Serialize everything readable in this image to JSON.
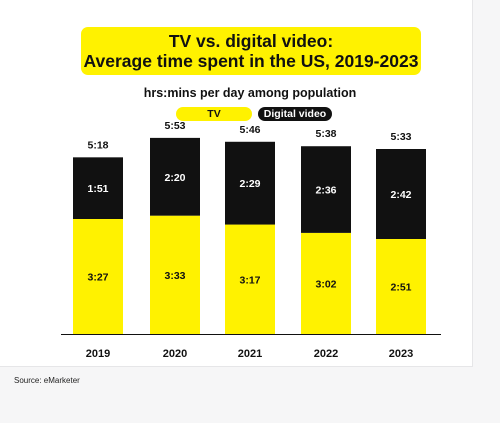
{
  "title_line1": "TV vs. digital video:",
  "title_line2": "Average time spent in the US, 2019-2023",
  "subtitle": "hrs:mins per day among population",
  "source": "Source: eMarketer",
  "colors": {
    "tv": "#fff200",
    "digital_video": "#111111",
    "title_bg": "#fff200"
  },
  "chart_data": {
    "type": "bar",
    "stacked": true,
    "unit": "hrs:mins per day",
    "categories": [
      "2019",
      "2020",
      "2021",
      "2022",
      "2023"
    ],
    "series": [
      {
        "name": "TV",
        "values": [
          3.45,
          3.55,
          3.2833,
          3.0333,
          2.85
        ],
        "labels": [
          "3:27",
          "3:33",
          "3:17",
          "3:02",
          "2:51"
        ]
      },
      {
        "name": "Digital video",
        "values": [
          1.85,
          2.3333,
          2.4833,
          2.6,
          2.7
        ],
        "labels": [
          "1:51",
          "2:20",
          "2:29",
          "2:36",
          "2:42"
        ]
      }
    ],
    "totals": [
      "5:18",
      "5:53",
      "5:46",
      "5:38",
      "5:33"
    ],
    "legend": {
      "position": "top"
    },
    "ylim": [
      0,
      6
    ],
    "grid": false
  }
}
